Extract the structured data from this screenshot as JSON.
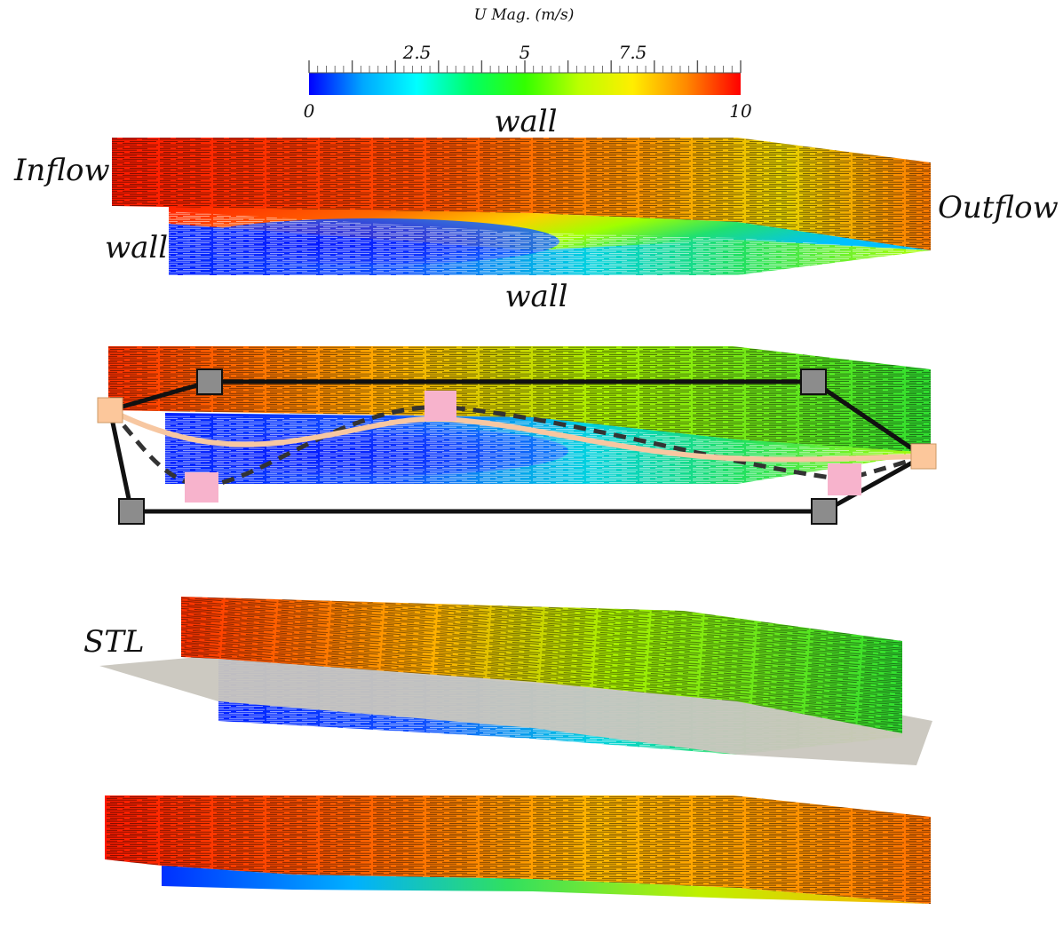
{
  "colorbar": {
    "title": "U Mag. (m/s)",
    "min": 0,
    "max": 10,
    "ticks": [
      {
        "value": 0,
        "label": "0",
        "side": "bottom"
      },
      {
        "value": 2.5,
        "label": "2.5",
        "side": "top"
      },
      {
        "value": 5,
        "label": "5",
        "side": "top"
      },
      {
        "value": 7.5,
        "label": "7.5",
        "side": "top"
      },
      {
        "value": 10,
        "label": "10",
        "side": "bottom"
      }
    ],
    "colors": [
      "#0000ff",
      "#00a8ff",
      "#00ffff",
      "#00ff66",
      "#33ff00",
      "#bbff00",
      "#ffee00",
      "#ff8800",
      "#ff0000"
    ]
  },
  "panels": {
    "flow_field": {
      "labels": {
        "top_wall": "wall",
        "inflow": "Inflow",
        "outflow": "Outflow",
        "step_wall": "wall",
        "bottom_wall": "wall"
      }
    },
    "ffd_box": {
      "colors": {
        "frame": "#111111",
        "control_point_gray": "#8c8c8c",
        "control_point_peach": "#fcc79b",
        "control_point_pink": "#f7b3cc",
        "spline": "#f7c7a1"
      }
    },
    "stl": {
      "label": "STL",
      "surface_color": "#c9c6be"
    },
    "optimized": {}
  }
}
